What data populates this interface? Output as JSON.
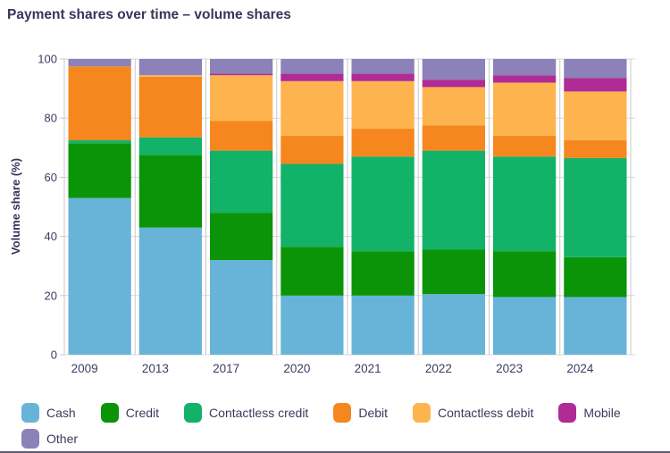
{
  "title": "Payment shares over time – volume shares",
  "chart_data": {
    "type": "bar",
    "stacked": true,
    "title": "Payment shares over time – volume shares",
    "xlabel": "",
    "ylabel": "Volume share (%)",
    "categories": [
      "2009",
      "2013",
      "2017",
      "2020",
      "2021",
      "2022",
      "2023",
      "2024"
    ],
    "series": [
      {
        "name": "Cash",
        "color": "#68b4d8",
        "values": [
          53,
          43,
          32,
          20,
          20,
          20.5,
          19.5,
          19.5
        ]
      },
      {
        "name": "Credit",
        "color": "#0b9408",
        "values": [
          18.5,
          24.5,
          16,
          16.5,
          15,
          15,
          15.5,
          13.5
        ]
      },
      {
        "name": "Contactless credit",
        "color": "#12b269",
        "values": [
          1,
          6,
          21,
          28,
          32,
          33.5,
          32,
          33.5
        ]
      },
      {
        "name": "Debit",
        "color": "#f5871e",
        "values": [
          25,
          20.5,
          10,
          9.5,
          9.5,
          8.5,
          7,
          6
        ]
      },
      {
        "name": "Contactless debit",
        "color": "#fdb44e",
        "values": [
          0,
          0.5,
          15.5,
          18.5,
          16,
          13,
          18,
          16.5
        ]
      },
      {
        "name": "Mobile",
        "color": "#b02b96",
        "values": [
          0,
          0,
          0.5,
          2.5,
          2.5,
          2.5,
          2.5,
          4.5
        ]
      },
      {
        "name": "Other",
        "color": "#8c81b8",
        "values": [
          2.5,
          5.5,
          5,
          5,
          5,
          7,
          5.5,
          6.5
        ]
      }
    ],
    "ylim": [
      0,
      100
    ],
    "yticks": [
      0,
      20,
      40,
      60,
      80,
      100
    ],
    "grid": true,
    "legend_position": "bottom"
  },
  "colors": {
    "text": "#3c3c64",
    "title": "#35355c",
    "gridline": "#d8d8d8",
    "axis": "#c8c8c8",
    "background": "#ffffff"
  },
  "legend": {
    "rows": [
      [
        "Cash",
        "Credit",
        "Contactless credit",
        "Debit",
        "Contactless debit",
        "Mobile"
      ],
      [
        "Other"
      ]
    ]
  }
}
